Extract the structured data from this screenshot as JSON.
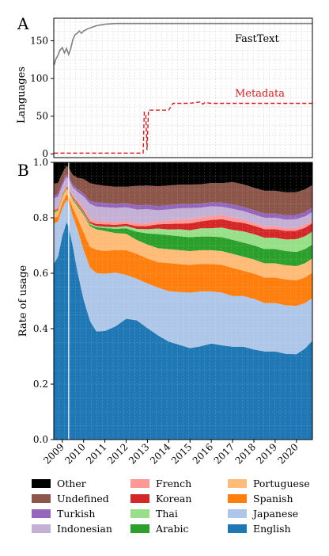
{
  "figure": {
    "panel_a_label": "A",
    "panel_b_label": "B"
  },
  "colors": {
    "Other": "#000000",
    "Undefined": "#8c564b",
    "Turkish": "#9467bd",
    "Indonesian": "#c5b0d5",
    "French": "#ff9896",
    "Korean": "#d62728",
    "Thai": "#98df8a",
    "Arabic": "#2ca02c",
    "Portuguese": "#ffbb78",
    "Spanish": "#ff7f0e",
    "Japanese": "#aec7e8",
    "English": "#1f77b4",
    "fasttext_line": "#808080",
    "metadata_line": "#e31a1c"
  },
  "chart_data": [
    {
      "type": "line",
      "panel": "A",
      "ylabel": "Languages",
      "xlim": [
        2008.6,
        2020.75
      ],
      "ylim": [
        -5,
        180
      ],
      "yticks": [
        0,
        50,
        100,
        150
      ],
      "grid": true,
      "series": [
        {
          "name": "FastText",
          "x": [
            2008.62,
            2008.7,
            2008.8,
            2008.9,
            2009.0,
            2009.1,
            2009.2,
            2009.3,
            2009.4,
            2009.5,
            2009.6,
            2009.7,
            2009.8,
            2009.9,
            2010.0,
            2010.2,
            2010.4,
            2010.6,
            2010.8,
            2011.0,
            2011.5,
            2012.0,
            2013.0,
            2014.0,
            2015.0,
            2016.0,
            2017.0,
            2018.0,
            2019.0,
            2020.0,
            2020.75
          ],
          "y": [
            118,
            126,
            131,
            138,
            141,
            134,
            140,
            132,
            140,
            152,
            158,
            160,
            163,
            160,
            163,
            166,
            168,
            170,
            171,
            172,
            173,
            173,
            173,
            173,
            173,
            173,
            173,
            173,
            173,
            173,
            173
          ]
        },
        {
          "name": "Metadata",
          "x": [
            2008.62,
            2009.0,
            2010.0,
            2011.0,
            2012.0,
            2012.8,
            2012.85,
            2012.92,
            2012.98,
            2013.05,
            2013.12,
            2013.6,
            2014.0,
            2014.2,
            2015.0,
            2015.5,
            2015.6,
            2015.7,
            2016.0,
            2017.0,
            2018.0,
            2019.0,
            2020.0,
            2020.75
          ],
          "y": [
            1,
            1,
            1,
            1,
            1,
            1,
            55,
            53,
            5,
            58,
            58,
            58,
            58,
            67,
            67,
            69,
            66,
            68,
            67,
            67,
            67,
            67,
            67,
            67
          ]
        }
      ],
      "annotations": [
        "FastText",
        "Metadata"
      ]
    },
    {
      "type": "area",
      "panel": "B",
      "stacked": true,
      "ylabel": "Rate of usage",
      "xlim": [
        2008.6,
        2020.75
      ],
      "ylim": [
        0,
        1.0
      ],
      "yticks": [
        0.0,
        0.2,
        0.4,
        0.6,
        0.8,
        1.0
      ],
      "xticks": [
        2009,
        2010,
        2011,
        2012,
        2013,
        2014,
        2015,
        2016,
        2017,
        2018,
        2019,
        2020
      ],
      "vertical_marker_x": 2009.3,
      "legend_position": "bottom",
      "legend_order": [
        "Other",
        "French",
        "Portuguese",
        "Undefined",
        "Korean",
        "Spanish",
        "Turkish",
        "Thai",
        "Japanese",
        "Indonesian",
        "Arabic",
        "English"
      ],
      "x": [
        2008.6,
        2008.8,
        2009.0,
        2009.2,
        2009.3,
        2009.5,
        2009.7,
        2010.0,
        2010.3,
        2010.6,
        2011.0,
        2011.5,
        2012.0,
        2012.5,
        2013.0,
        2013.5,
        2014.0,
        2014.5,
        2015.0,
        2015.5,
        2016.0,
        2016.5,
        2017.0,
        2017.5,
        2018.0,
        2018.5,
        2019.0,
        2019.5,
        2020.0,
        2020.4,
        2020.75
      ],
      "series": [
        {
          "name": "English",
          "values": [
            0.65,
            0.68,
            0.74,
            0.78,
            0.77,
            0.7,
            0.6,
            0.48,
            0.4,
            0.37,
            0.38,
            0.4,
            0.44,
            0.43,
            0.4,
            0.37,
            0.35,
            0.34,
            0.33,
            0.34,
            0.35,
            0.34,
            0.33,
            0.33,
            0.32,
            0.31,
            0.31,
            0.3,
            0.3,
            0.32,
            0.35
          ]
        },
        {
          "name": "Japanese",
          "values": [
            0.15,
            0.13,
            0.1,
            0.08,
            0.09,
            0.11,
            0.15,
            0.17,
            0.18,
            0.2,
            0.2,
            0.19,
            0.16,
            0.15,
            0.16,
            0.17,
            0.18,
            0.19,
            0.2,
            0.2,
            0.19,
            0.19,
            0.18,
            0.18,
            0.18,
            0.17,
            0.17,
            0.17,
            0.17,
            0.16,
            0.15
          ]
        },
        {
          "name": "Spanish",
          "values": [
            0.02,
            0.02,
            0.02,
            0.02,
            0.02,
            0.03,
            0.04,
            0.06,
            0.07,
            0.08,
            0.08,
            0.08,
            0.09,
            0.09,
            0.09,
            0.09,
            0.1,
            0.1,
            0.1,
            0.1,
            0.1,
            0.1,
            0.1,
            0.09,
            0.09,
            0.09,
            0.09,
            0.09,
            0.09,
            0.09,
            0.09
          ]
        },
        {
          "name": "Portuguese",
          "values": [
            0.02,
            0.02,
            0.02,
            0.02,
            0.02,
            0.03,
            0.04,
            0.06,
            0.07,
            0.07,
            0.07,
            0.06,
            0.06,
            0.05,
            0.05,
            0.05,
            0.05,
            0.05,
            0.05,
            0.05,
            0.05,
            0.05,
            0.05,
            0.05,
            0.05,
            0.05,
            0.05,
            0.05,
            0.05,
            0.05,
            0.05
          ]
        },
        {
          "name": "Arabic",
          "values": [
            0.003,
            0.003,
            0.003,
            0.003,
            0.003,
            0.004,
            0.005,
            0.005,
            0.005,
            0.007,
            0.01,
            0.015,
            0.02,
            0.03,
            0.04,
            0.05,
            0.05,
            0.05,
            0.05,
            0.05,
            0.05,
            0.05,
            0.05,
            0.05,
            0.05,
            0.05,
            0.05,
            0.05,
            0.05,
            0.05,
            0.05
          ]
        },
        {
          "name": "Thai",
          "values": [
            0.002,
            0.002,
            0.002,
            0.002,
            0.002,
            0.002,
            0.003,
            0.003,
            0.004,
            0.004,
            0.005,
            0.006,
            0.008,
            0.01,
            0.015,
            0.02,
            0.02,
            0.025,
            0.025,
            0.03,
            0.03,
            0.035,
            0.035,
            0.04,
            0.04,
            0.04,
            0.04,
            0.04,
            0.045,
            0.045,
            0.045
          ]
        },
        {
          "name": "Korean",
          "values": [
            0.003,
            0.003,
            0.003,
            0.003,
            0.003,
            0.004,
            0.005,
            0.005,
            0.006,
            0.007,
            0.008,
            0.008,
            0.008,
            0.01,
            0.012,
            0.015,
            0.02,
            0.02,
            0.025,
            0.025,
            0.03,
            0.03,
            0.03,
            0.03,
            0.03,
            0.03,
            0.03,
            0.03,
            0.03,
            0.03,
            0.03
          ]
        },
        {
          "name": "French",
          "values": [
            0.005,
            0.005,
            0.005,
            0.005,
            0.005,
            0.006,
            0.008,
            0.01,
            0.01,
            0.01,
            0.01,
            0.01,
            0.01,
            0.01,
            0.01,
            0.01,
            0.012,
            0.015,
            0.015,
            0.015,
            0.015,
            0.015,
            0.015,
            0.012,
            0.01,
            0.01,
            0.01,
            0.01,
            0.01,
            0.01,
            0.01
          ]
        },
        {
          "name": "Indonesian",
          "values": [
            0.04,
            0.04,
            0.03,
            0.03,
            0.03,
            0.03,
            0.03,
            0.04,
            0.05,
            0.05,
            0.05,
            0.05,
            0.05,
            0.05,
            0.05,
            0.04,
            0.04,
            0.04,
            0.04,
            0.035,
            0.035,
            0.03,
            0.03,
            0.03,
            0.03,
            0.03,
            0.03,
            0.03,
            0.03,
            0.03,
            0.03
          ]
        },
        {
          "name": "Turkish",
          "values": [
            0.01,
            0.01,
            0.01,
            0.01,
            0.01,
            0.01,
            0.01,
            0.01,
            0.01,
            0.015,
            0.015,
            0.015,
            0.015,
            0.015,
            0.015,
            0.015,
            0.015,
            0.015,
            0.015,
            0.015,
            0.015,
            0.015,
            0.015,
            0.015,
            0.015,
            0.015,
            0.015,
            0.015,
            0.015,
            0.015,
            0.015
          ]
        },
        {
          "name": "Undefined",
          "values": [
            0.045,
            0.04,
            0.035,
            0.03,
            0.03,
            0.035,
            0.04,
            0.05,
            0.06,
            0.06,
            0.06,
            0.06,
            0.06,
            0.07,
            0.07,
            0.07,
            0.07,
            0.07,
            0.07,
            0.07,
            0.07,
            0.07,
            0.08,
            0.08,
            0.08,
            0.08,
            0.08,
            0.08,
            0.08,
            0.08,
            0.08
          ]
        },
        {
          "name": "Other",
          "values": [
            0.078,
            0.077,
            0.039,
            0.012,
            0.02,
            0.046,
            0.054,
            0.057,
            0.07,
            0.076,
            0.082,
            0.086,
            0.089,
            0.085,
            0.083,
            0.085,
            0.083,
            0.08,
            0.08,
            0.08,
            0.075,
            0.075,
            0.07,
            0.078,
            0.09,
            0.1,
            0.1,
            0.105,
            0.105,
            0.095,
            0.08
          ]
        }
      ]
    }
  ]
}
